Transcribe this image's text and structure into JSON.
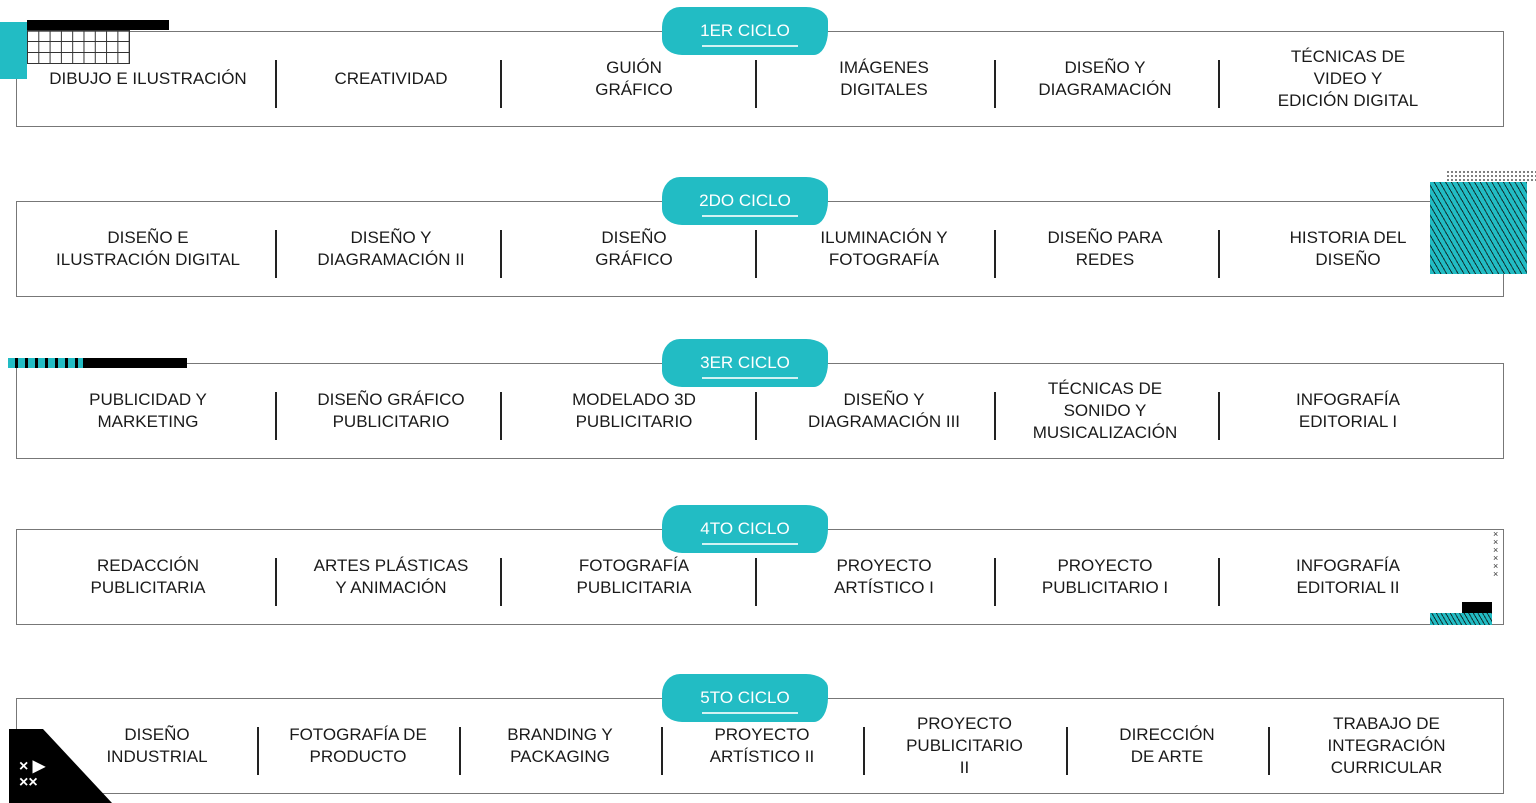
{
  "accent_color": "#22bcc4",
  "cycles": [
    {
      "label": "1ER CICLO",
      "courses": [
        "Dibujo e ilustración",
        "Creatividad",
        "Guión\ngráfico",
        "Imágenes\ndigitales",
        "Diseño y\ndiagramación",
        "Técnicas de\nvideo y\nedición digital"
      ]
    },
    {
      "label": "2DO CICLO",
      "courses": [
        "Diseño e\nilustración digital",
        "Diseño y\ndiagramación II",
        "Diseño\ngráfico",
        "Iluminación y\nfotografía",
        "Diseño para\nredes",
        "Historia del\ndiseño"
      ]
    },
    {
      "label": "3ER CICLO",
      "courses": [
        "Publicidad y\nmarketing",
        "Diseño gráfico\npublicitario",
        "Modelado 3D\npublicitario",
        "Diseño y\ndiagramación III",
        "Técnicas de\nsonido y\nmusicalización",
        "Infografía\neditorial I"
      ]
    },
    {
      "label": "4TO CICLO",
      "courses": [
        "Redacción\npublicitaria",
        "Artes plásticas\ny animación",
        "Fotografía\npublicitaria",
        "Proyecto\nartístico I",
        "Proyecto\npublicitario I",
        "Infografía\neditorial II"
      ]
    },
    {
      "label": "5TO CICLO",
      "courses": [
        "Diseño\nindustrial",
        "Fotografía de\nproducto",
        "Branding y\npackaging",
        "Proyecto\nartístico II",
        "Proyecto\npublicitario\nII",
        "Dirección\nde arte",
        "Trabajo de\nintegración\ncurricular"
      ]
    }
  ]
}
